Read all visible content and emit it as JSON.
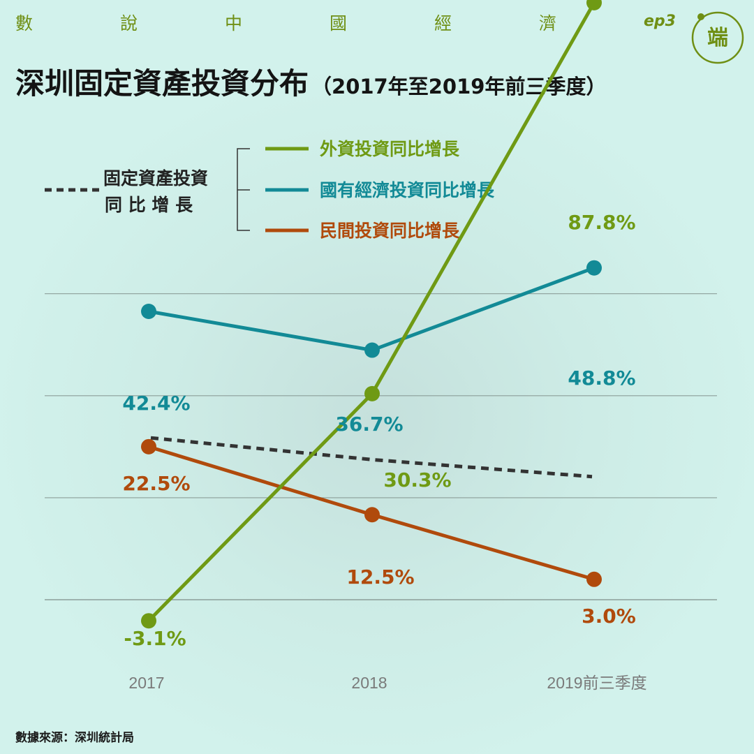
{
  "header": {
    "series_chars": [
      "數",
      "說",
      "中",
      "國",
      "經",
      "濟"
    ],
    "episode": "ep3",
    "logo_text": "端"
  },
  "title": "深圳固定資產投資分布",
  "subtitle": "（2017年至2019年前三季度）",
  "legend": {
    "overall_line1": "固定資產投資",
    "overall_line2": "同 比 增 長",
    "items": [
      "外資投資同比增長",
      "國有經濟投資同比增長",
      "民間投資同比增長"
    ]
  },
  "source": "數據來源：深圳統計局",
  "colors": {
    "foreign": "#6f9a14",
    "state": "#128a96",
    "private": "#b04a0c",
    "overall": "#333333",
    "grid": "#8c9e99",
    "axis_text": "#7a7a7a"
  },
  "chart_data": {
    "type": "line",
    "categories": [
      "2017",
      "2018",
      "2019前三季度"
    ],
    "series": [
      {
        "name": "外資投資同比增長",
        "values": [
          -3.1,
          30.3,
          87.8
        ],
        "labels": [
          "-3.1%",
          "30.3%",
          "87.8%"
        ]
      },
      {
        "name": "國有經濟投資同比增長",
        "values": [
          42.4,
          36.7,
          48.8
        ],
        "labels": [
          "42.4%",
          "36.7%",
          "48.8%"
        ]
      },
      {
        "name": "民間投資同比增長",
        "values": [
          22.5,
          12.5,
          3.0
        ],
        "labels": [
          "22.5%",
          "12.5%",
          "3.0%"
        ]
      },
      {
        "name": "固定資產投資同比增長",
        "values": [
          23.8,
          20.6,
          18.1
        ]
      }
    ],
    "ylim": [
      -5,
      90
    ],
    "gridlines": [
      0,
      15,
      30,
      45
    ],
    "grid": true
  }
}
